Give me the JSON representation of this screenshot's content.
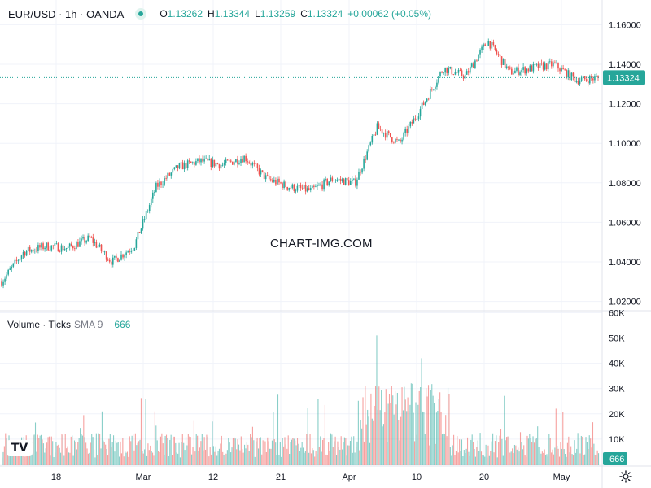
{
  "header": {
    "symbol": "EUR/USD · 1h · OANDA",
    "o_label": "O",
    "o_value": "1.13262",
    "h_label": "H",
    "h_value": "1.13344",
    "l_label": "L",
    "l_value": "1.13259",
    "c_label": "C",
    "c_value": "1.13324",
    "change": "+0.00062 (+0.05%)"
  },
  "volume_header": {
    "title": "Volume · Ticks",
    "sma": "SMA 9",
    "value": "666"
  },
  "watermark": "CHART-IMG.COM",
  "logo": "TV",
  "colors": {
    "up": "#26a69a",
    "down": "#ef5350",
    "price_line": "#26a69a"
  },
  "chart_data": [
    {
      "type": "candlestick",
      "title": "EUR/USD · 1h · OANDA",
      "y_ticks": [
        "1.16000",
        "1.14000",
        "1.12000",
        "1.10000",
        "1.08000",
        "1.06000",
        "1.04000",
        "1.02000"
      ],
      "ylim": [
        1.0185,
        1.1625
      ],
      "x_ticks": [
        "18",
        "Mar",
        "12",
        "21",
        "Apr",
        "10",
        "20",
        "May"
      ],
      "last_price": "1.13324",
      "grid": true,
      "approx_path": [
        [
          "start",
          1.03
        ],
        [
          "18",
          1.045
        ],
        [
          "wk",
          1.048
        ],
        [
          "wk",
          1.047
        ],
        [
          "wk",
          1.052
        ],
        [
          "pre-Mar",
          1.04
        ],
        [
          "Mar",
          1.048
        ],
        [
          "mid",
          1.078
        ],
        [
          "mid",
          1.088
        ],
        [
          "12",
          1.091
        ],
        [
          "mid",
          1.089
        ],
        [
          "mid",
          1.093
        ],
        [
          "21",
          1.082
        ],
        [
          "mid",
          1.078
        ],
        [
          "mid",
          1.076
        ],
        [
          "mid",
          1.082
        ],
        [
          "Apr",
          1.08
        ],
        [
          "mid",
          1.108
        ],
        [
          "mid",
          1.1
        ],
        [
          "10",
          1.118
        ],
        [
          "mid",
          1.138
        ],
        [
          "mid",
          1.134
        ],
        [
          "20",
          1.152
        ],
        [
          "mid",
          1.136
        ],
        [
          "mid",
          1.138
        ],
        [
          "mid",
          1.14
        ],
        [
          "May",
          1.132
        ],
        [
          "end",
          1.133
        ]
      ]
    },
    {
      "type": "bar",
      "title": "Volume · Ticks",
      "y_ticks": [
        "60K",
        "50K",
        "40K",
        "30K",
        "20K",
        "10K"
      ],
      "ylim": [
        0,
        60000
      ],
      "last_value": "666"
    }
  ]
}
